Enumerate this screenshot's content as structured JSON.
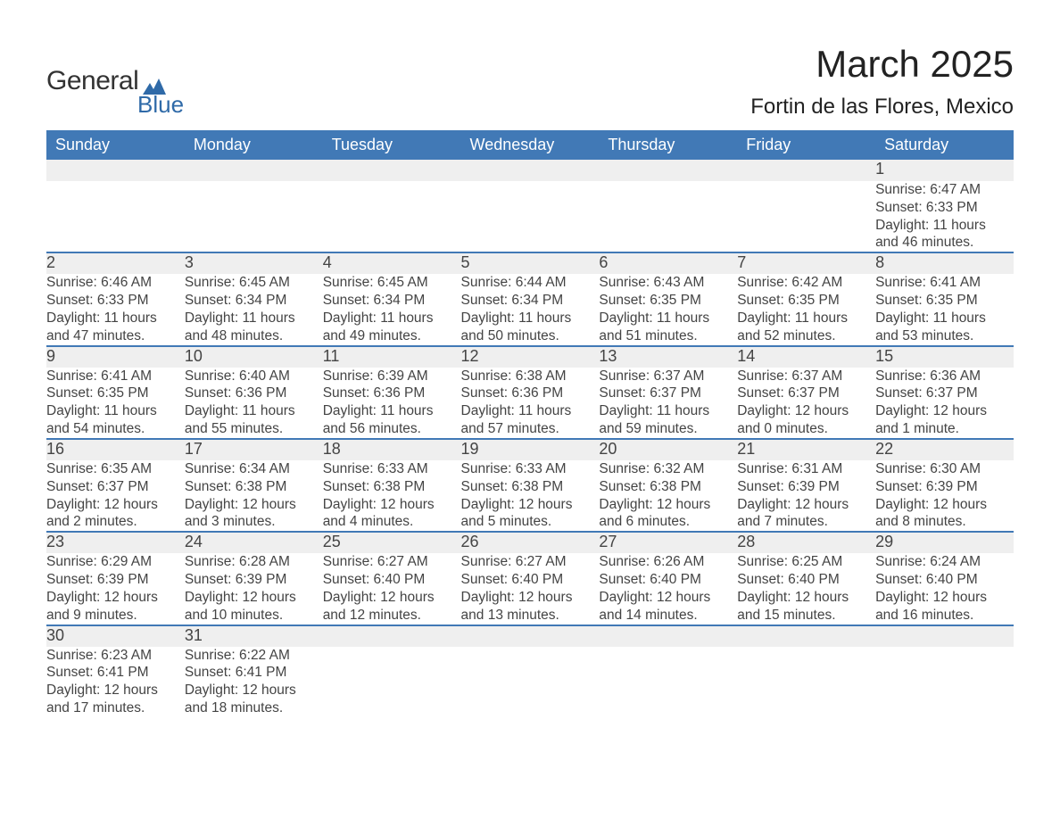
{
  "brand": {
    "name_part1": "General",
    "name_part2": "Blue",
    "logo_color": "#2f6aa8"
  },
  "header": {
    "month_title": "March 2025",
    "location": "Fortin de las Flores, Mexico"
  },
  "calendar": {
    "type": "table",
    "header_bg": "#4179b6",
    "header_fg": "#ffffff",
    "row_separator_color": "#4179b6",
    "daynum_bg": "#efefef",
    "text_color": "#444444",
    "font_family": "Arial",
    "columns": [
      "Sunday",
      "Monday",
      "Tuesday",
      "Wednesday",
      "Thursday",
      "Friday",
      "Saturday"
    ],
    "weeks": [
      [
        null,
        null,
        null,
        null,
        null,
        null,
        {
          "day": "1",
          "sunrise": "Sunrise: 6:47 AM",
          "sunset": "Sunset: 6:33 PM",
          "daylight1": "Daylight: 11 hours",
          "daylight2": "and 46 minutes."
        }
      ],
      [
        {
          "day": "2",
          "sunrise": "Sunrise: 6:46 AM",
          "sunset": "Sunset: 6:33 PM",
          "daylight1": "Daylight: 11 hours",
          "daylight2": "and 47 minutes."
        },
        {
          "day": "3",
          "sunrise": "Sunrise: 6:45 AM",
          "sunset": "Sunset: 6:34 PM",
          "daylight1": "Daylight: 11 hours",
          "daylight2": "and 48 minutes."
        },
        {
          "day": "4",
          "sunrise": "Sunrise: 6:45 AM",
          "sunset": "Sunset: 6:34 PM",
          "daylight1": "Daylight: 11 hours",
          "daylight2": "and 49 minutes."
        },
        {
          "day": "5",
          "sunrise": "Sunrise: 6:44 AM",
          "sunset": "Sunset: 6:34 PM",
          "daylight1": "Daylight: 11 hours",
          "daylight2": "and 50 minutes."
        },
        {
          "day": "6",
          "sunrise": "Sunrise: 6:43 AM",
          "sunset": "Sunset: 6:35 PM",
          "daylight1": "Daylight: 11 hours",
          "daylight2": "and 51 minutes."
        },
        {
          "day": "7",
          "sunrise": "Sunrise: 6:42 AM",
          "sunset": "Sunset: 6:35 PM",
          "daylight1": "Daylight: 11 hours",
          "daylight2": "and 52 minutes."
        },
        {
          "day": "8",
          "sunrise": "Sunrise: 6:41 AM",
          "sunset": "Sunset: 6:35 PM",
          "daylight1": "Daylight: 11 hours",
          "daylight2": "and 53 minutes."
        }
      ],
      [
        {
          "day": "9",
          "sunrise": "Sunrise: 6:41 AM",
          "sunset": "Sunset: 6:35 PM",
          "daylight1": "Daylight: 11 hours",
          "daylight2": "and 54 minutes."
        },
        {
          "day": "10",
          "sunrise": "Sunrise: 6:40 AM",
          "sunset": "Sunset: 6:36 PM",
          "daylight1": "Daylight: 11 hours",
          "daylight2": "and 55 minutes."
        },
        {
          "day": "11",
          "sunrise": "Sunrise: 6:39 AM",
          "sunset": "Sunset: 6:36 PM",
          "daylight1": "Daylight: 11 hours",
          "daylight2": "and 56 minutes."
        },
        {
          "day": "12",
          "sunrise": "Sunrise: 6:38 AM",
          "sunset": "Sunset: 6:36 PM",
          "daylight1": "Daylight: 11 hours",
          "daylight2": "and 57 minutes."
        },
        {
          "day": "13",
          "sunrise": "Sunrise: 6:37 AM",
          "sunset": "Sunset: 6:37 PM",
          "daylight1": "Daylight: 11 hours",
          "daylight2": "and 59 minutes."
        },
        {
          "day": "14",
          "sunrise": "Sunrise: 6:37 AM",
          "sunset": "Sunset: 6:37 PM",
          "daylight1": "Daylight: 12 hours",
          "daylight2": "and 0 minutes."
        },
        {
          "day": "15",
          "sunrise": "Sunrise: 6:36 AM",
          "sunset": "Sunset: 6:37 PM",
          "daylight1": "Daylight: 12 hours",
          "daylight2": "and 1 minute."
        }
      ],
      [
        {
          "day": "16",
          "sunrise": "Sunrise: 6:35 AM",
          "sunset": "Sunset: 6:37 PM",
          "daylight1": "Daylight: 12 hours",
          "daylight2": "and 2 minutes."
        },
        {
          "day": "17",
          "sunrise": "Sunrise: 6:34 AM",
          "sunset": "Sunset: 6:38 PM",
          "daylight1": "Daylight: 12 hours",
          "daylight2": "and 3 minutes."
        },
        {
          "day": "18",
          "sunrise": "Sunrise: 6:33 AM",
          "sunset": "Sunset: 6:38 PM",
          "daylight1": "Daylight: 12 hours",
          "daylight2": "and 4 minutes."
        },
        {
          "day": "19",
          "sunrise": "Sunrise: 6:33 AM",
          "sunset": "Sunset: 6:38 PM",
          "daylight1": "Daylight: 12 hours",
          "daylight2": "and 5 minutes."
        },
        {
          "day": "20",
          "sunrise": "Sunrise: 6:32 AM",
          "sunset": "Sunset: 6:38 PM",
          "daylight1": "Daylight: 12 hours",
          "daylight2": "and 6 minutes."
        },
        {
          "day": "21",
          "sunrise": "Sunrise: 6:31 AM",
          "sunset": "Sunset: 6:39 PM",
          "daylight1": "Daylight: 12 hours",
          "daylight2": "and 7 minutes."
        },
        {
          "day": "22",
          "sunrise": "Sunrise: 6:30 AM",
          "sunset": "Sunset: 6:39 PM",
          "daylight1": "Daylight: 12 hours",
          "daylight2": "and 8 minutes."
        }
      ],
      [
        {
          "day": "23",
          "sunrise": "Sunrise: 6:29 AM",
          "sunset": "Sunset: 6:39 PM",
          "daylight1": "Daylight: 12 hours",
          "daylight2": "and 9 minutes."
        },
        {
          "day": "24",
          "sunrise": "Sunrise: 6:28 AM",
          "sunset": "Sunset: 6:39 PM",
          "daylight1": "Daylight: 12 hours",
          "daylight2": "and 10 minutes."
        },
        {
          "day": "25",
          "sunrise": "Sunrise: 6:27 AM",
          "sunset": "Sunset: 6:40 PM",
          "daylight1": "Daylight: 12 hours",
          "daylight2": "and 12 minutes."
        },
        {
          "day": "26",
          "sunrise": "Sunrise: 6:27 AM",
          "sunset": "Sunset: 6:40 PM",
          "daylight1": "Daylight: 12 hours",
          "daylight2": "and 13 minutes."
        },
        {
          "day": "27",
          "sunrise": "Sunrise: 6:26 AM",
          "sunset": "Sunset: 6:40 PM",
          "daylight1": "Daylight: 12 hours",
          "daylight2": "and 14 minutes."
        },
        {
          "day": "28",
          "sunrise": "Sunrise: 6:25 AM",
          "sunset": "Sunset: 6:40 PM",
          "daylight1": "Daylight: 12 hours",
          "daylight2": "and 15 minutes."
        },
        {
          "day": "29",
          "sunrise": "Sunrise: 6:24 AM",
          "sunset": "Sunset: 6:40 PM",
          "daylight1": "Daylight: 12 hours",
          "daylight2": "and 16 minutes."
        }
      ],
      [
        {
          "day": "30",
          "sunrise": "Sunrise: 6:23 AM",
          "sunset": "Sunset: 6:41 PM",
          "daylight1": "Daylight: 12 hours",
          "daylight2": "and 17 minutes."
        },
        {
          "day": "31",
          "sunrise": "Sunrise: 6:22 AM",
          "sunset": "Sunset: 6:41 PM",
          "daylight1": "Daylight: 12 hours",
          "daylight2": "and 18 minutes."
        },
        null,
        null,
        null,
        null,
        null
      ]
    ]
  }
}
